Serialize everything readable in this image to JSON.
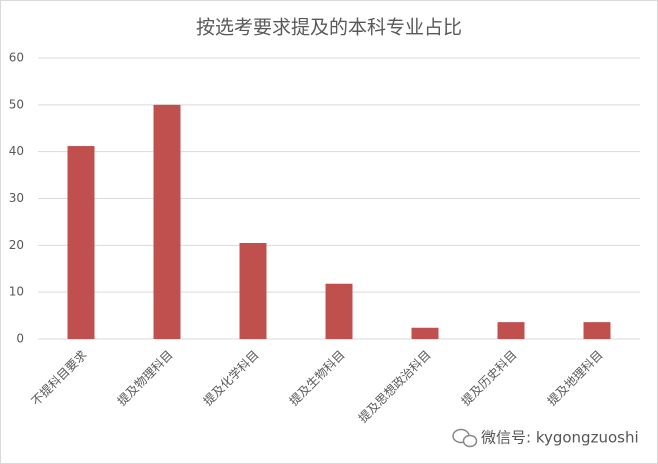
{
  "chart_data": {
    "type": "bar",
    "title": "按选考要求提及的本科专业占比",
    "categories": [
      "不提科目要求",
      "提及物理科目",
      "提及化学科目",
      "提及生物科目",
      "提及思想政治科目",
      "提及历史科目",
      "提及地理科目"
    ],
    "values": [
      41.2,
      50,
      20.5,
      11.8,
      2.4,
      3.6,
      3.6
    ],
    "color": "#c0504d",
    "ylim": [
      0,
      60
    ],
    "yticks": [
      0,
      10,
      20,
      30,
      40,
      50,
      60
    ],
    "grid": true
  },
  "watermark": "微信号: kygongzuoshi"
}
